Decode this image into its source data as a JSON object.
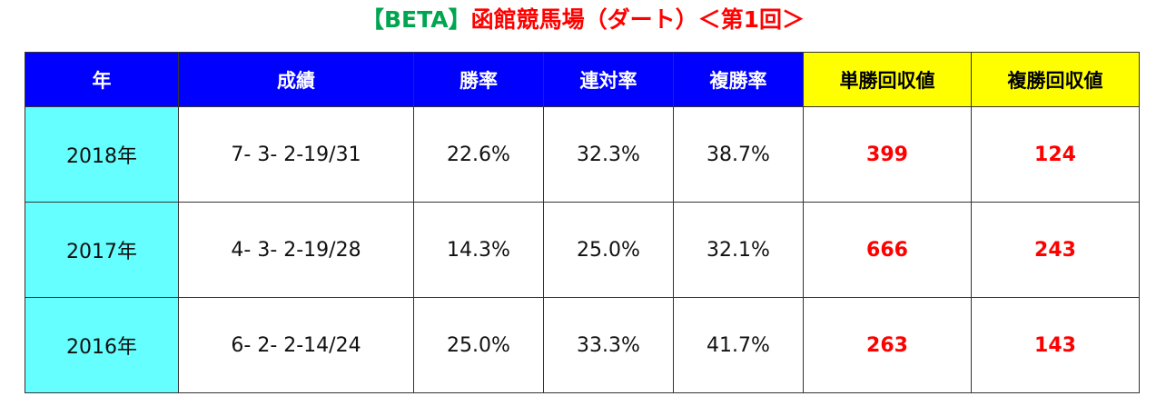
{
  "header": {
    "title_prefix": "【BETA】",
    "title": "函館競馬場（ダート）＜第1回＞"
  },
  "table": {
    "columns": [
      "年",
      "成績",
      "勝率",
      "連対率",
      "複勝率",
      "単勝回収値",
      "複勝回収値"
    ],
    "rows": [
      [
        "2018年",
        "7- 3- 2-19/31",
        "22.6%",
        "32.3%",
        "38.7%",
        "399",
        "124"
      ],
      [
        "2017年",
        "4- 3- 2-19/28",
        "14.3%",
        "25.0%",
        "32.1%",
        "666",
        "243"
      ],
      [
        "2016年",
        "6- 2- 2-14/24",
        "25.0%",
        "33.3%",
        "41.7%",
        "263",
        "143"
      ]
    ]
  }
}
